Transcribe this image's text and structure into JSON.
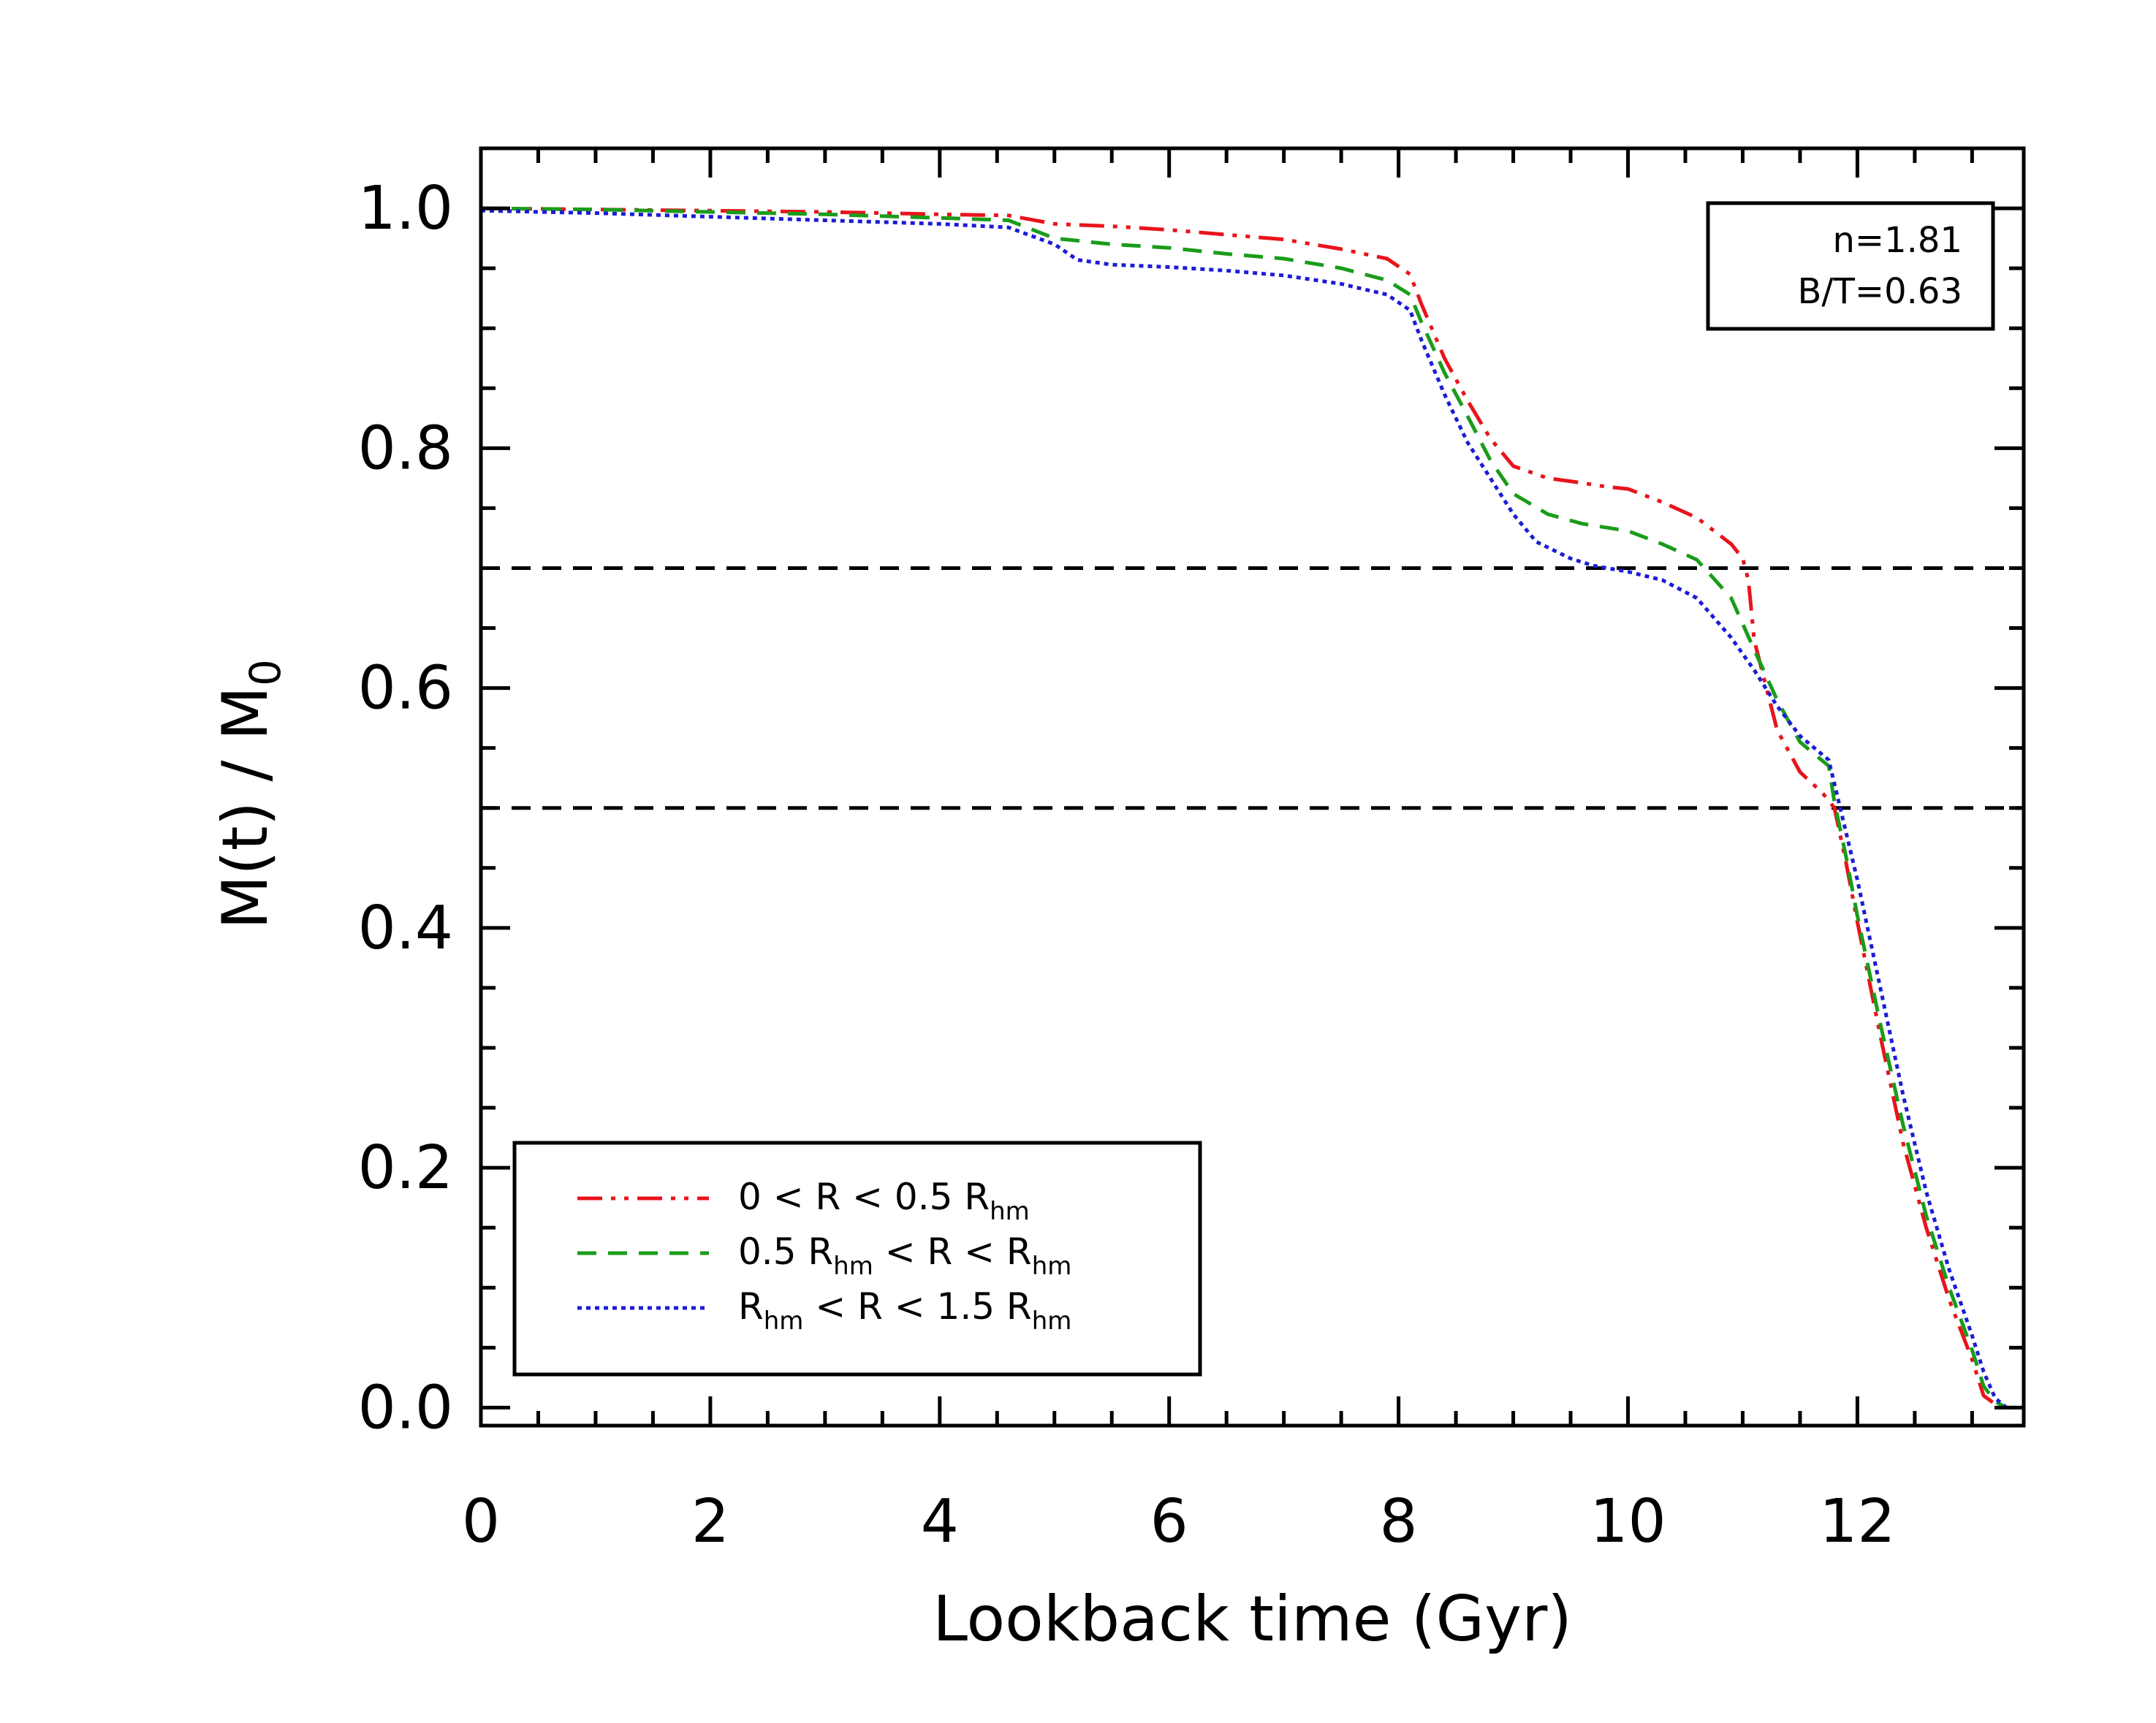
{
  "chart_data": {
    "type": "line",
    "title": "",
    "xlabel": "Lookback time (Gyr)",
    "ylabel": {
      "main": "M(t)  /  M",
      "sub": "0"
    },
    "xlim": [
      0,
      13.45
    ],
    "ylim": [
      -0.015,
      1.05
    ],
    "xticks": [
      0,
      2,
      4,
      6,
      8,
      10,
      12
    ],
    "xtick_labels": [
      "0",
      "2",
      "4",
      "6",
      "8",
      "10",
      "12"
    ],
    "yticks": [
      0.0,
      0.2,
      0.4,
      0.6,
      0.8,
      1.0
    ],
    "ytick_labels": [
      "0.0",
      "0.2",
      "0.4",
      "0.6",
      "0.8",
      "1.0"
    ],
    "grid": false,
    "annotation": {
      "line1": "n=1.81",
      "line2": "B/T=0.63",
      "placement": "top-right"
    },
    "reference_lines": [
      {
        "name": "threshold-0.7",
        "y": 0.7,
        "style": "dashed",
        "color": "#000000"
      },
      {
        "name": "threshold-0.5",
        "y": 0.5,
        "style": "dashed",
        "color": "#000000"
      }
    ],
    "legend": {
      "placement": "bottom-left"
    },
    "series": [
      {
        "name": "inner",
        "legend": {
          "pre": "0 < R < 0.5 R",
          "sub1": "hm",
          "post": "",
          "sub2": ""
        },
        "color": "#e8141c",
        "style": "dash-dot-dot",
        "x": [
          0,
          1,
          2,
          3,
          4,
          4.6,
          5.0,
          5.5,
          6.0,
          6.5,
          7.0,
          7.5,
          7.9,
          8.1,
          8.2,
          8.4,
          8.6,
          8.8,
          9.0,
          9.3,
          9.6,
          9.8,
          10.0,
          10.3,
          10.6,
          10.9,
          11.0,
          11.05,
          11.1,
          11.3,
          11.5,
          11.7,
          11.8,
          11.9,
          12.0,
          12.2,
          12.4,
          12.6,
          12.8,
          13.0,
          13.1,
          13.2,
          13.3,
          13.45
        ],
        "y": [
          1.0,
          0.999,
          0.998,
          0.997,
          0.995,
          0.994,
          0.987,
          0.985,
          0.982,
          0.978,
          0.974,
          0.966,
          0.958,
          0.945,
          0.92,
          0.875,
          0.84,
          0.808,
          0.785,
          0.775,
          0.771,
          0.768,
          0.766,
          0.755,
          0.742,
          0.72,
          0.708,
          0.69,
          0.64,
          0.565,
          0.53,
          0.512,
          0.5,
          0.455,
          0.405,
          0.31,
          0.22,
          0.15,
          0.09,
          0.04,
          0.01,
          0.003,
          0.0,
          0.0
        ]
      },
      {
        "name": "middle",
        "legend": {
          "pre": "0.5 R",
          "sub1": "hm",
          "post": " < R < R",
          "sub2": "hm"
        },
        "color": "#1a9c1a",
        "style": "dashed",
        "x": [
          0,
          1,
          2,
          3,
          4,
          4.6,
          5.0,
          5.5,
          6.0,
          6.5,
          7.0,
          7.5,
          7.9,
          8.1,
          8.2,
          8.4,
          8.6,
          8.8,
          9.0,
          9.3,
          9.6,
          9.8,
          10.0,
          10.3,
          10.6,
          10.9,
          11.1,
          11.3,
          11.5,
          11.75,
          11.8,
          11.9,
          12.0,
          12.2,
          12.4,
          12.6,
          12.8,
          13.0,
          13.1,
          13.2,
          13.3,
          13.45
        ],
        "y": [
          1.0,
          0.999,
          0.997,
          0.995,
          0.992,
          0.99,
          0.975,
          0.97,
          0.967,
          0.962,
          0.958,
          0.95,
          0.94,
          0.928,
          0.905,
          0.863,
          0.827,
          0.79,
          0.762,
          0.745,
          0.737,
          0.734,
          0.731,
          0.72,
          0.707,
          0.675,
          0.632,
          0.59,
          0.555,
          0.535,
          0.505,
          0.46,
          0.41,
          0.32,
          0.235,
          0.16,
          0.1,
          0.048,
          0.018,
          0.005,
          0.0,
          0.0
        ]
      },
      {
        "name": "outer",
        "legend": {
          "pre": "R",
          "sub1": "hm",
          "post": " < R < 1.5 R",
          "sub2": "hm"
        },
        "color": "#1c1cd6",
        "style": "dotted",
        "x": [
          0,
          1,
          2,
          3,
          4,
          4.6,
          5.0,
          5.2,
          5.5,
          6.0,
          6.5,
          7.0,
          7.5,
          7.9,
          8.1,
          8.2,
          8.4,
          8.6,
          8.8,
          9.0,
          9.2,
          9.5,
          9.7,
          10.0,
          10.3,
          10.6,
          10.9,
          11.1,
          11.3,
          11.5,
          11.75,
          11.85,
          12.0,
          12.2,
          12.4,
          12.6,
          12.8,
          13.0,
          13.1,
          13.2,
          13.3,
          13.45
        ],
        "y": [
          0.998,
          0.996,
          0.993,
          0.99,
          0.987,
          0.984,
          0.97,
          0.957,
          0.953,
          0.951,
          0.948,
          0.944,
          0.937,
          0.928,
          0.915,
          0.89,
          0.845,
          0.805,
          0.775,
          0.745,
          0.722,
          0.708,
          0.702,
          0.697,
          0.69,
          0.675,
          0.642,
          0.615,
          0.585,
          0.56,
          0.54,
          0.5,
          0.44,
          0.35,
          0.26,
          0.18,
          0.115,
          0.06,
          0.03,
          0.008,
          0.0,
          0.0
        ]
      }
    ]
  }
}
